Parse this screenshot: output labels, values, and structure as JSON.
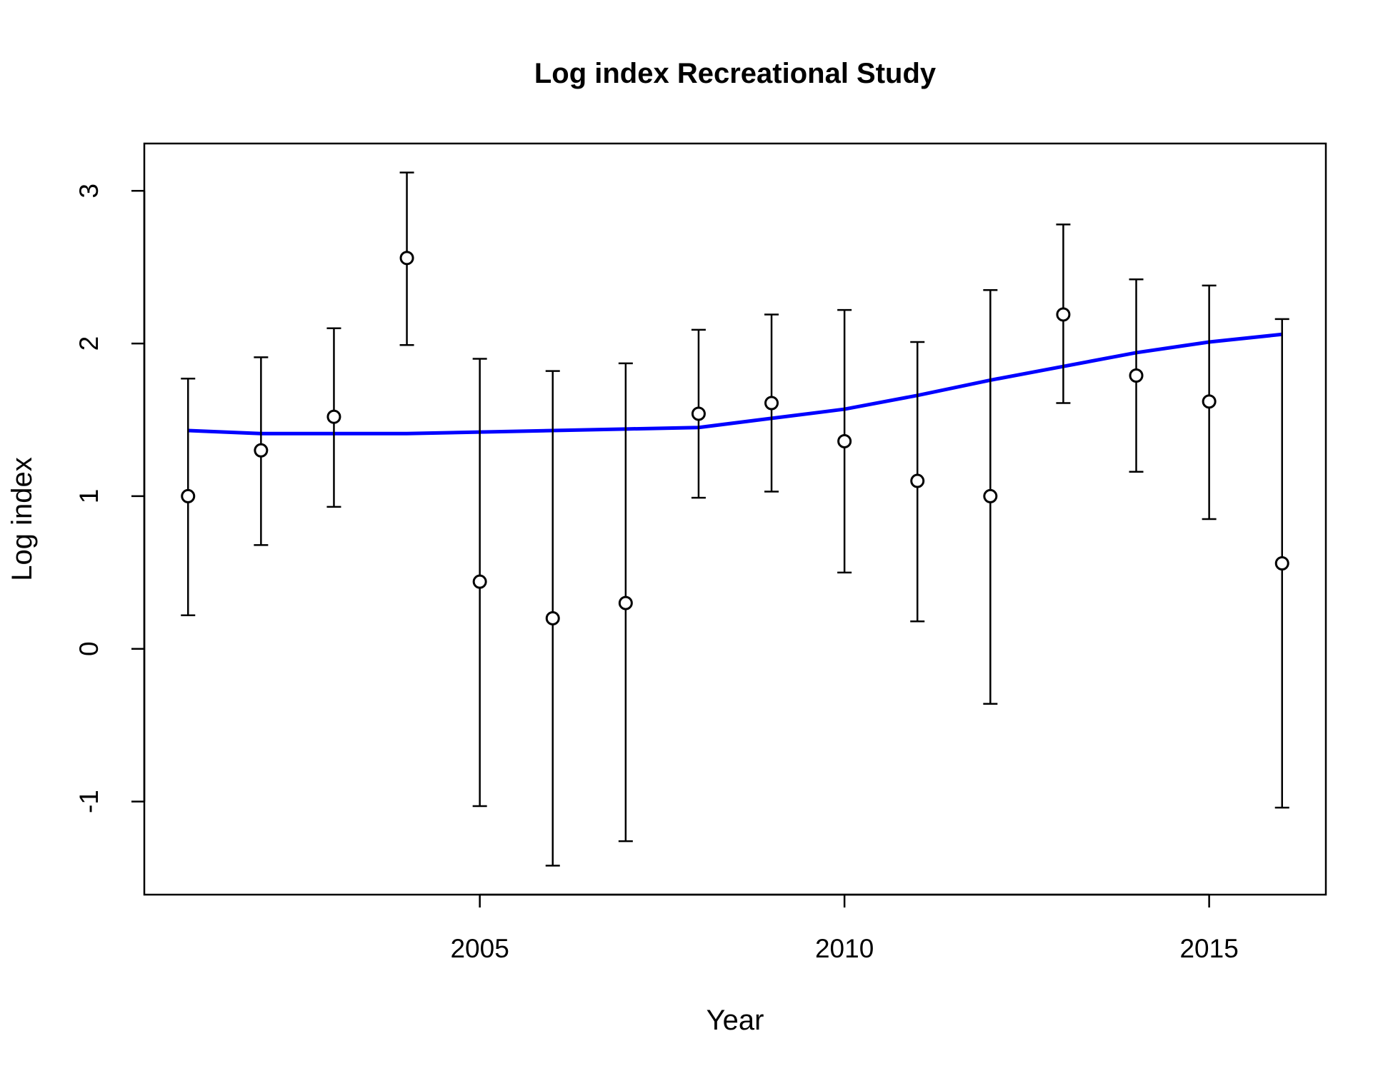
{
  "chart_data": {
    "type": "scatter",
    "title": "Log index Recreational Study",
    "xlabel": "Year",
    "ylabel": "Log index",
    "xlim": [
      2000.4,
      2016.6
    ],
    "ylim": [
      -1.61,
      3.31
    ],
    "x_ticks": [
      2005,
      2010,
      2015
    ],
    "x_tick_labels": [
      "2005",
      "2010",
      "2015"
    ],
    "y_ticks": [
      -1,
      0,
      1,
      2,
      3
    ],
    "y_tick_labels": [
      "-1",
      "0",
      "1",
      "2",
      "3"
    ],
    "grid": false,
    "legend": "none",
    "series": [
      {
        "kind": "points-with-error-bars",
        "x": [
          2001,
          2002,
          2003,
          2004,
          2005,
          2006,
          2007,
          2008,
          2009,
          2010,
          2011,
          2012,
          2013,
          2014,
          2015,
          2016
        ],
        "y": [
          1.0,
          1.3,
          1.52,
          2.56,
          0.44,
          0.2,
          0.3,
          1.54,
          1.61,
          1.36,
          1.1,
          1.0,
          2.19,
          1.79,
          1.62,
          0.56
        ],
        "lower": [
          0.22,
          0.68,
          0.93,
          1.99,
          -1.03,
          -1.42,
          -1.26,
          0.99,
          1.03,
          0.5,
          0.18,
          -0.36,
          1.61,
          1.16,
          0.85,
          -1.04
        ],
        "upper": [
          1.77,
          1.91,
          2.1,
          3.12,
          1.9,
          1.82,
          1.87,
          2.09,
          2.19,
          2.22,
          2.01,
          2.35,
          2.78,
          2.42,
          2.38,
          2.16
        ],
        "color": "#000000"
      },
      {
        "kind": "line",
        "x": [
          2001,
          2002,
          2003,
          2004,
          2005,
          2006,
          2007,
          2008,
          2009,
          2010,
          2011,
          2012,
          2013,
          2014,
          2015,
          2016
        ],
        "y": [
          1.43,
          1.41,
          1.41,
          1.41,
          1.42,
          1.43,
          1.44,
          1.45,
          1.51,
          1.57,
          1.66,
          1.76,
          1.85,
          1.94,
          2.01,
          2.06
        ],
        "color": "#0000ff"
      }
    ]
  }
}
